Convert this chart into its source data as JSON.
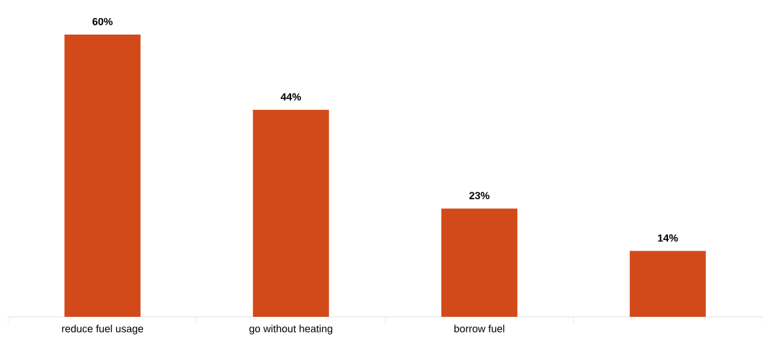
{
  "chart_data": {
    "type": "bar",
    "categories": [
      "reduce fuel usage",
      "go without heating",
      "borrow fuel",
      null
    ],
    "values": [
      60,
      44,
      23,
      14
    ],
    "value_labels": [
      "60%",
      "44%",
      "23%",
      "14%"
    ],
    "color": "#d34a1a"
  }
}
